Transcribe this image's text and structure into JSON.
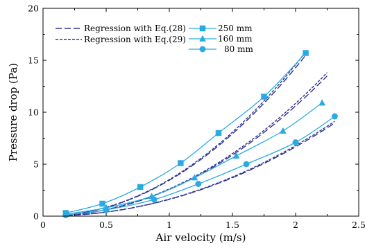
{
  "chart_data": {
    "type": "line",
    "xlabel": "Air velocity (m/s)",
    "ylabel": "Pressure drop (Pa)",
    "xlim": [
      0,
      2.5
    ],
    "ylim": [
      0,
      20
    ],
    "xticks": [
      0,
      0.5,
      1,
      1.5,
      2,
      2.5
    ],
    "yticks": [
      0,
      5,
      10,
      15,
      20
    ],
    "xtick_labels": [
      "0",
      "0.5",
      "1",
      "1.5",
      "2",
      "2.5"
    ],
    "ytick_labels": [
      "0",
      "5",
      "10",
      "15",
      "20"
    ],
    "grid": false,
    "legend_placement": "top-left",
    "series": [
      {
        "name": "250 mm",
        "marker": "square",
        "color": "#29abe2",
        "x": [
          0.18,
          0.47,
          0.77,
          1.09,
          1.39,
          1.75,
          2.08
        ],
        "y": [
          0.3,
          1.2,
          2.8,
          5.1,
          8.0,
          11.5,
          15.7
        ]
      },
      {
        "name": "160 mm",
        "marker": "triangle",
        "color": "#29abe2",
        "x": [
          0.18,
          0.5,
          0.86,
          1.2,
          1.53,
          1.9,
          2.21
        ],
        "y": [
          0.2,
          0.8,
          1.9,
          3.7,
          5.8,
          8.2,
          10.9
        ]
      },
      {
        "name": "80 mm",
        "marker": "circle",
        "color": "#29abe2",
        "x": [
          0.18,
          0.5,
          0.88,
          1.23,
          1.61,
          2.0,
          2.31
        ],
        "y": [
          0.1,
          0.6,
          1.6,
          3.1,
          5.0,
          7.1,
          9.6
        ]
      },
      {
        "name": "Regression with Eq.(28)",
        "style": "long-dash",
        "color": "#2e3192",
        "curves": [
          {
            "a": 3.45,
            "n": 2.05,
            "x0": 0.18,
            "x1": 2.09
          },
          {
            "a": 2.56,
            "n": 2.05,
            "x0": 0.18,
            "x1": 2.25
          },
          {
            "a": 1.61,
            "n": 2.05,
            "x0": 0.18,
            "x1": 2.31
          }
        ]
      },
      {
        "name": "Regression with Eq.(29)",
        "style": "short-dash",
        "color": "#2e3192",
        "curves": [
          {
            "a": 3.52,
            "n": 2.05,
            "x0": 0.18,
            "x1": 2.09
          },
          {
            "a": 2.62,
            "n": 2.05,
            "x0": 0.18,
            "x1": 2.25
          },
          {
            "a": 1.64,
            "n": 2.05,
            "x0": 0.18,
            "x1": 2.31
          }
        ]
      }
    ],
    "legend": {
      "regression_entries": [
        "Regression with Eq.(28)",
        "Regression with Eq.(29)"
      ],
      "measured_entries": [
        "250 mm",
        "160 mm",
        "80 mm"
      ]
    }
  }
}
